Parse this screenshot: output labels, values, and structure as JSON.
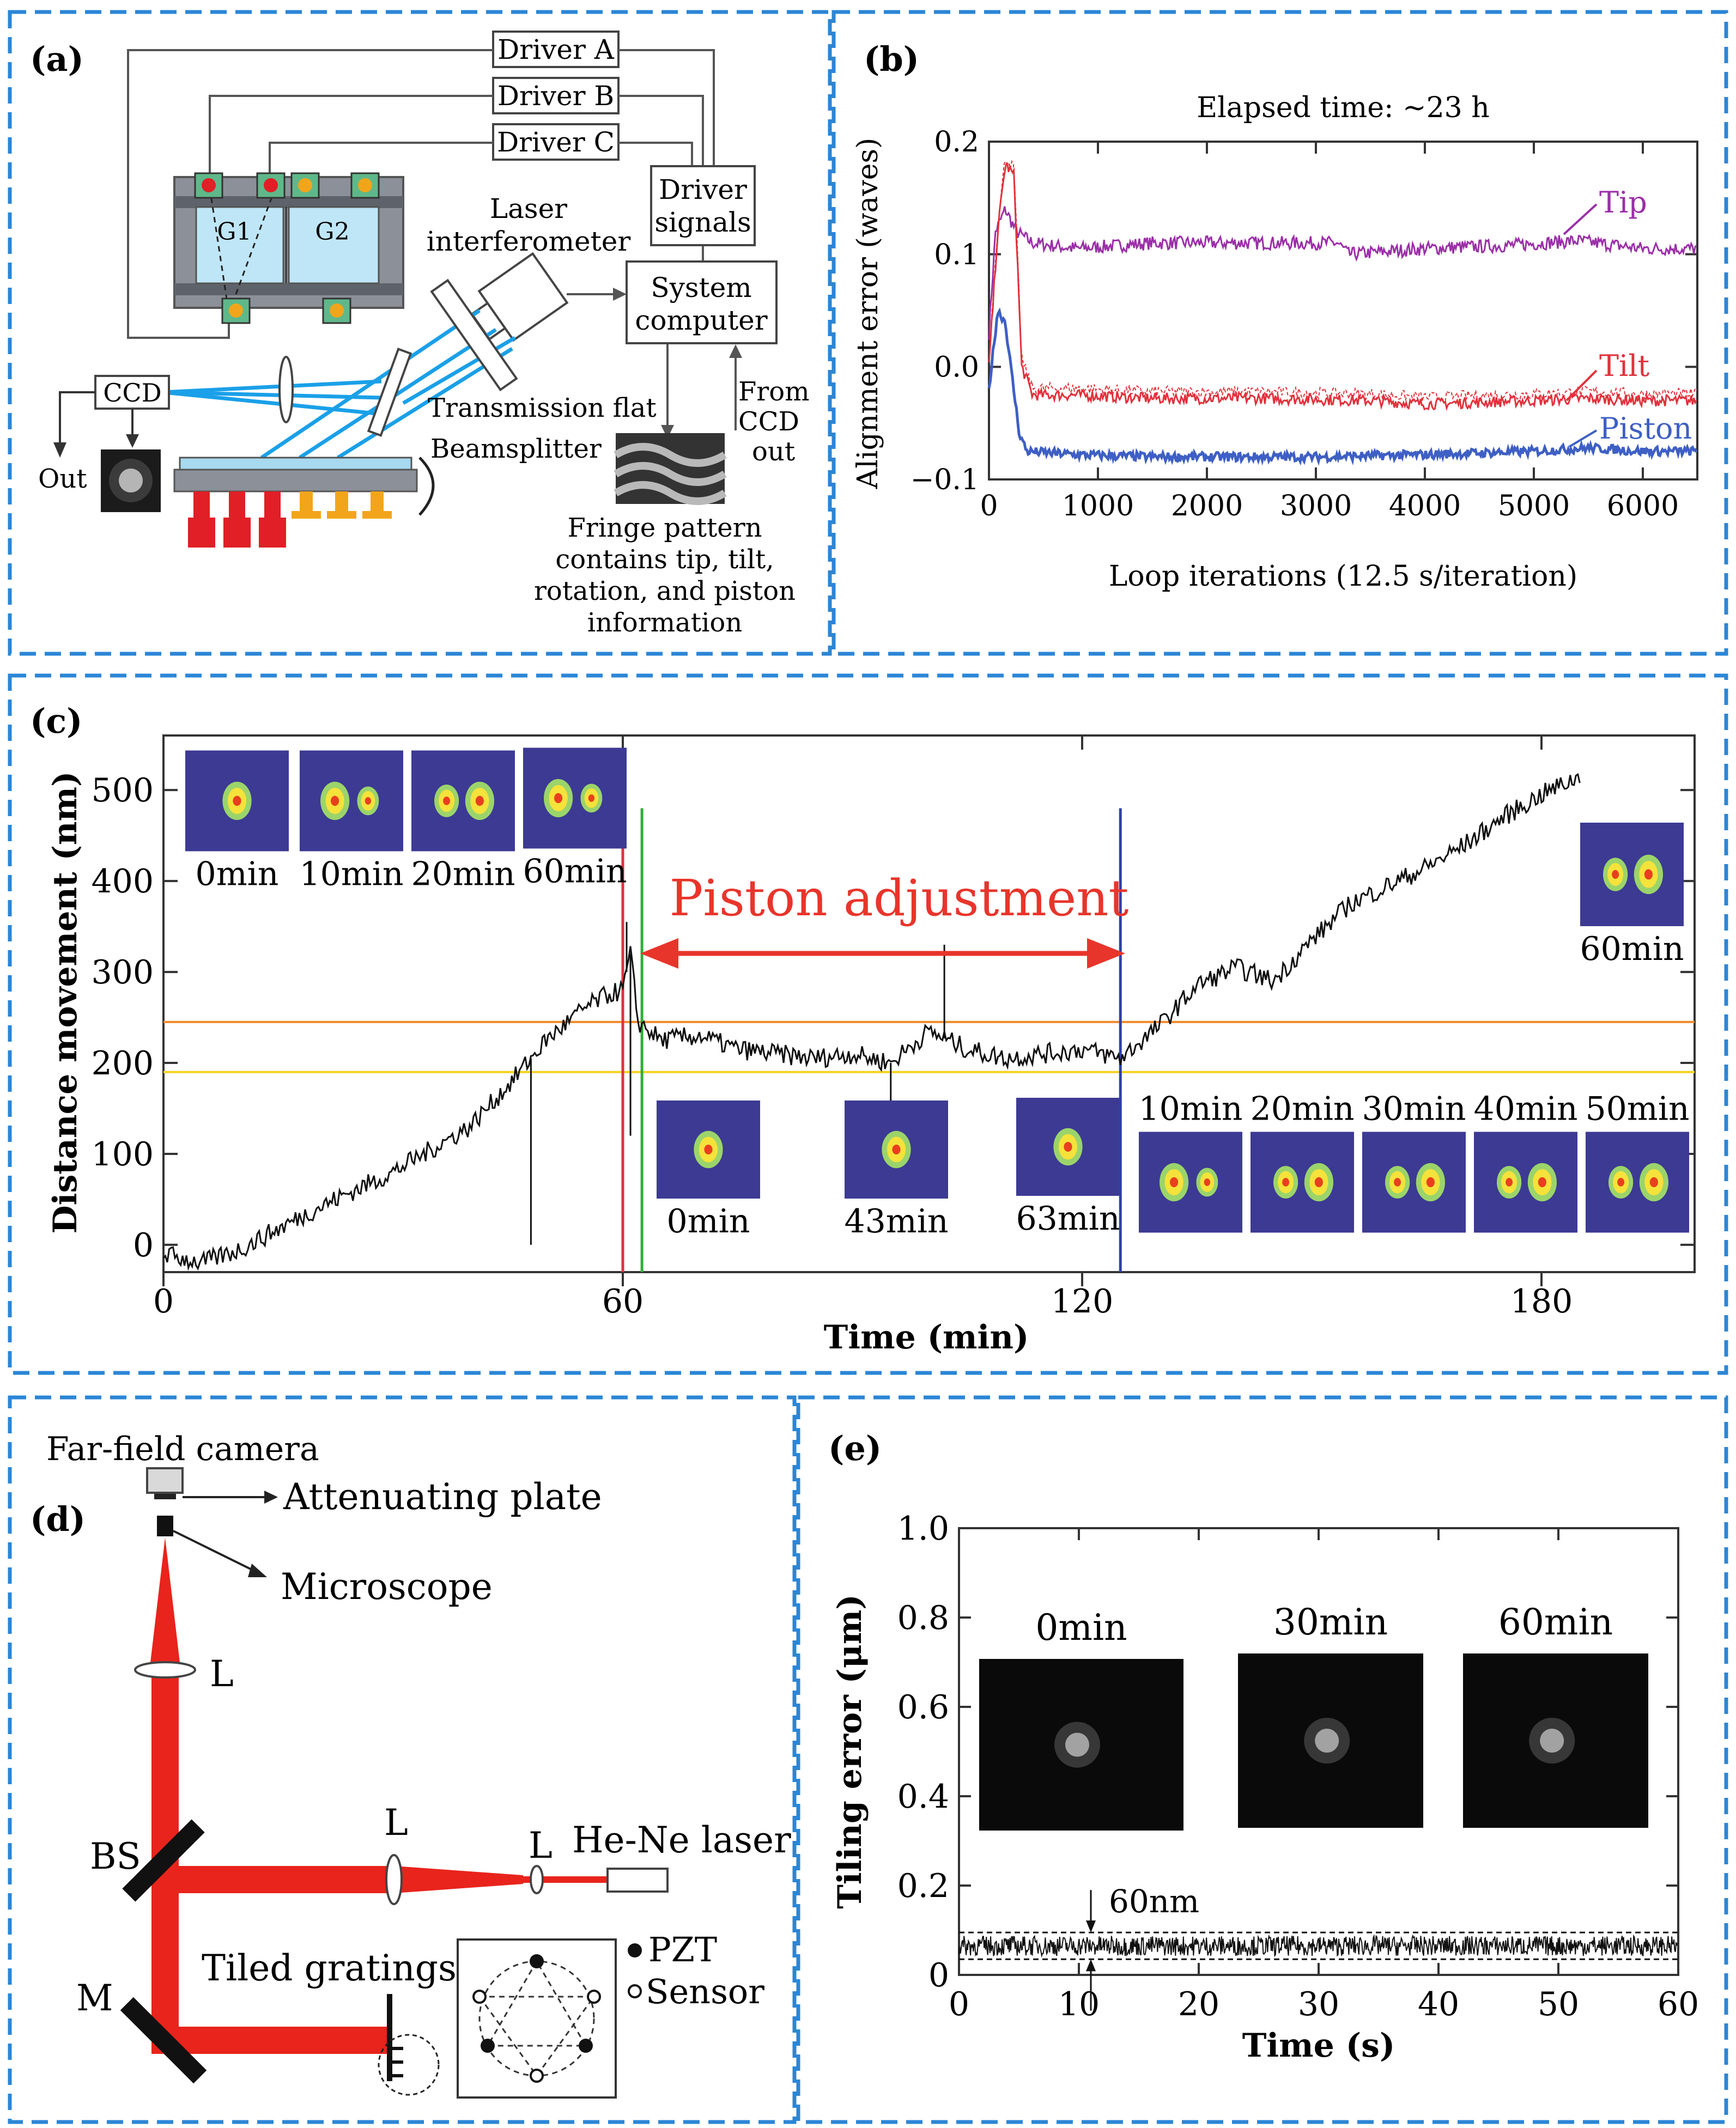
{
  "colors": {
    "frame": "#2b86d6",
    "tip": "#9b2fa8",
    "tilt": "#e0323c",
    "piston": "#3e5fc4",
    "beam": "#1aa0e8",
    "laser": "#e8241c",
    "pzt_red": "#e01f26",
    "pzt_orange": "#f2a51b",
    "orange_line": "#f08a2c",
    "yellow_line": "#f5d21b",
    "arrow_red": "#e8352b",
    "green_line": "#2fae3b",
    "blue_line": "#2f3fae",
    "spot_bg": "#3c3a93"
  },
  "panel_a": {
    "label": "(a)",
    "drivers": [
      "Driver A",
      "Driver B",
      "Driver C"
    ],
    "driver_signals": [
      "Driver",
      "signals"
    ],
    "system_computer": [
      "System",
      "computer"
    ],
    "laser_interferometer": [
      "Laser",
      "interferometer"
    ],
    "grating_labels": [
      "G1",
      "G2"
    ],
    "ccd": "CCD",
    "out": "Out",
    "transmission_flat": "Transmission flat",
    "beamsplitter": "Beamsplitter",
    "from_ccd": [
      "From",
      "CCD",
      "out"
    ],
    "fringe_caption": [
      "Fringe pattern",
      "contains tip, tilt,",
      "rotation, and piston",
      "information"
    ]
  },
  "panel_b": {
    "label": "(b)",
    "chart_data": {
      "type": "line",
      "title": "Elapsed time: ~23 h",
      "xlabel": "Loop iterations (12.5 s/iteration)",
      "ylabel": "Alignment error (waves)",
      "xlim": [
        0,
        6500
      ],
      "ylim": [
        -0.1,
        0.2
      ],
      "xticks": [
        "0",
        "1000",
        "2000",
        "3000",
        "4000",
        "5000",
        "6000"
      ],
      "xtick_values": [
        0,
        1000,
        2000,
        3000,
        4000,
        5000,
        6000
      ],
      "yticks": [
        "−0.1",
        "0.0",
        "0.1",
        "0.2"
      ],
      "ytick_values": [
        -0.1,
        0.0,
        0.1,
        0.2
      ],
      "series": [
        {
          "name": "Tip",
          "color": "#9b2fa8",
          "x": [
            0,
            60,
            150,
            250,
            400,
            800,
            1500,
            2500,
            3200,
            3300,
            4000,
            4800,
            5400,
            6000,
            6500
          ],
          "y": [
            0.03,
            0.12,
            0.14,
            0.12,
            0.11,
            0.105,
            0.11,
            0.11,
            0.11,
            0.1,
            0.105,
            0.108,
            0.112,
            0.105,
            0.105
          ]
        },
        {
          "name": "Tilt",
          "color": "#e0323c",
          "x": [
            0,
            80,
            150,
            230,
            300,
            400,
            800,
            1500,
            2500,
            3500,
            4000,
            5000,
            5500,
            6000,
            6500
          ],
          "y": [
            0.0,
            0.12,
            0.18,
            0.17,
            0.0,
            -0.025,
            -0.025,
            -0.028,
            -0.028,
            -0.03,
            -0.033,
            -0.03,
            -0.028,
            -0.03,
            -0.03
          ]
        },
        {
          "name": "Piston",
          "color": "#3e5fc4",
          "x": [
            0,
            80,
            150,
            200,
            280,
            350,
            800,
            1500,
            2500,
            3000,
            4000,
            5000,
            5500,
            6000,
            6500
          ],
          "y": [
            -0.02,
            0.05,
            0.04,
            0.0,
            -0.06,
            -0.075,
            -0.078,
            -0.08,
            -0.08,
            -0.08,
            -0.078,
            -0.075,
            -0.072,
            -0.075,
            -0.075
          ]
        }
      ]
    }
  },
  "panel_c": {
    "label": "(c)",
    "chart_data": {
      "type": "line",
      "xlabel": "Time (min)",
      "ylabel": "Distance movement (nm)",
      "xlim": [
        0,
        200
      ],
      "ylim": [
        -30,
        560
      ],
      "xticks": [
        "0",
        "60",
        "120",
        "180"
      ],
      "xtick_values": [
        0,
        60,
        120,
        180
      ],
      "yticks": [
        "0",
        "100",
        "200",
        "300",
        "400",
        "500"
      ],
      "ytick_values": [
        0,
        100,
        200,
        300,
        400,
        500
      ],
      "series": [
        {
          "name": "",
          "color": "#111111",
          "x": [
            0,
            5,
            10,
            20,
            30,
            40,
            45,
            50,
            55,
            58,
            60,
            61,
            62,
            65,
            70,
            75,
            80,
            85,
            90,
            95,
            100,
            105,
            110,
            115,
            120,
            125,
            130,
            135,
            140,
            145,
            150,
            155,
            160,
            165,
            170,
            175,
            180,
            185
          ],
          "y": [
            -10,
            -20,
            -5,
            40,
            80,
            130,
            175,
            225,
            260,
            275,
            280,
            320,
            245,
            225,
            230,
            215,
            210,
            205,
            210,
            200,
            235,
            215,
            205,
            210,
            215,
            205,
            240,
            285,
            305,
            290,
            335,
            375,
            395,
            415,
            440,
            470,
            495,
            515
          ]
        }
      ],
      "hlines": [
        {
          "y": 245,
          "color": "#f08a2c"
        },
        {
          "y": 190,
          "color": "#f5d21b"
        }
      ],
      "vlines": [
        {
          "x": 60,
          "color": "#e0323c"
        },
        {
          "x": 62.5,
          "color": "#2fae3b"
        },
        {
          "x": 125,
          "color": "#2f3fae"
        }
      ],
      "annotation": "Piston adjustment"
    },
    "spots_top": [
      "0min",
      "10min",
      "20min",
      "60min"
    ],
    "spots_mid": [
      "0min",
      "43min",
      "63min"
    ],
    "spots_right": [
      "10min",
      "20min",
      "30min",
      "40min",
      "50min"
    ],
    "spot_60": "60min"
  },
  "panel_d": {
    "label": "(d)",
    "far_field_camera": "Far-field camera",
    "attenuating_plate": "Attenuating plate",
    "microscope": "Microscope",
    "lens": "L",
    "bs": "BS",
    "mirror": "M",
    "laser": "He-Ne laser",
    "tiled_gratings": "Tiled gratings",
    "pzt": "PZT",
    "sensor": "Sensor"
  },
  "panel_e": {
    "label": "(e)",
    "chart_data": {
      "type": "line",
      "xlabel": "Time (s)",
      "ylabel": "Tiling error (μm)",
      "xlim": [
        0,
        60
      ],
      "ylim": [
        0,
        1.0
      ],
      "xticks": [
        "0",
        "10",
        "20",
        "30",
        "40",
        "50",
        "60"
      ],
      "xtick_values": [
        0,
        10,
        20,
        30,
        40,
        50,
        60
      ],
      "yticks": [
        "0",
        "0.2",
        "0.4",
        "0.6",
        "0.8",
        "1.0"
      ],
      "ytick_values": [
        0,
        0.2,
        0.4,
        0.6,
        0.8,
        1.0
      ],
      "band": [
        0.035,
        0.095
      ],
      "mean": 0.065,
      "annotation": "60nm"
    },
    "insets": [
      "0min",
      "30min",
      "60min"
    ]
  }
}
